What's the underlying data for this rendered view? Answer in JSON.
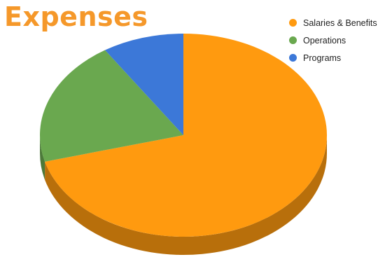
{
  "chart_data": {
    "type": "pie",
    "title": "Expenses",
    "categories": [
      "Salaries & Benefits",
      "Operations",
      "Programs"
    ],
    "values": [
      70.8,
      20.0,
      9.2
    ],
    "colors": [
      "#ff9a0f",
      "#6aa84f",
      "#3c78d8"
    ],
    "legend_position": "top-right",
    "style": "3d-tilted"
  },
  "theme": {
    "title_color": "#f5982a"
  }
}
